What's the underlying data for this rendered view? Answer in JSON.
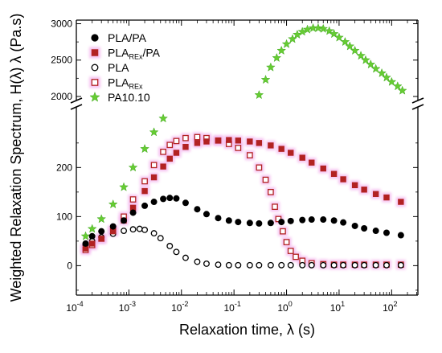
{
  "chart_data": {
    "type": "scatter",
    "xlabel": "Relaxation time, λ (s)",
    "ylabel": "Weighted Relaxation Spectrum, H(λ) λ (Pa.s)",
    "x_scale": "log",
    "xlim": [
      0.0001,
      316
    ],
    "x_ticks": [
      "10-4",
      "10-3",
      "10-2",
      "10-1",
      "100",
      "101",
      "102"
    ],
    "y_axis_break": {
      "lower_range": [
        -60,
        330
      ],
      "upper_range": [
        1900,
        3050
      ]
    },
    "y_ticks_lower": [
      "0",
      "100",
      "200"
    ],
    "y_ticks_upper": [
      "2000",
      "2500",
      "3000"
    ],
    "legend_position": "top-left",
    "series": [
      {
        "name": "PLA/PA",
        "marker": "filled-circle",
        "color": "#000000",
        "x": [
          0.00015,
          0.0002,
          0.0003,
          0.0005,
          0.0008,
          0.0012,
          0.002,
          0.003,
          0.0045,
          0.006,
          0.008,
          0.012,
          0.02,
          0.03,
          0.05,
          0.08,
          0.12,
          0.2,
          0.3,
          0.5,
          0.8,
          1.2,
          2,
          3,
          5,
          8,
          12,
          20,
          30,
          50,
          80,
          150
        ],
        "y": [
          45,
          60,
          70,
          80,
          92,
          108,
          122,
          130,
          136,
          138,
          137,
          128,
          115,
          105,
          97,
          92,
          89,
          87,
          86,
          87,
          89,
          91,
          93,
          94,
          94,
          92,
          88,
          81,
          76,
          71,
          67,
          62
        ]
      },
      {
        "name": "PLAREx/PA",
        "marker": "filled-square",
        "color": "#b22222",
        "x": [
          0.00015,
          0.0002,
          0.0003,
          0.0005,
          0.0008,
          0.0012,
          0.002,
          0.003,
          0.0045,
          0.006,
          0.008,
          0.012,
          0.02,
          0.03,
          0.05,
          0.08,
          0.12,
          0.2,
          0.3,
          0.5,
          0.8,
          1.2,
          2,
          3,
          5,
          8,
          12,
          20,
          30,
          50,
          80,
          150
        ],
        "y": [
          35,
          45,
          55,
          70,
          92,
          118,
          152,
          180,
          202,
          218,
          230,
          242,
          250,
          253,
          255,
          256,
          255,
          253,
          250,
          245,
          238,
          230,
          220,
          210,
          198,
          187,
          176,
          164,
          155,
          146,
          139,
          130
        ]
      },
      {
        "name": "PLA",
        "marker": "open-circle",
        "color": "#000000",
        "x": [
          0.00015,
          0.0002,
          0.0003,
          0.0005,
          0.0008,
          0.0012,
          0.0016,
          0.002,
          0.003,
          0.004,
          0.006,
          0.008,
          0.012,
          0.02,
          0.03,
          0.05,
          0.08,
          0.12,
          0.2,
          0.3,
          0.5,
          0.8,
          1.2,
          2,
          3,
          5,
          8,
          12,
          20,
          30,
          50,
          80,
          150
        ],
        "y": [
          42,
          50,
          58,
          65,
          71,
          74,
          75,
          73,
          66,
          56,
          40,
          28,
          16,
          8,
          4,
          2,
          1,
          1,
          1,
          1,
          1,
          1,
          1,
          1,
          1,
          1,
          1,
          1,
          1,
          1,
          1,
          1,
          1
        ]
      },
      {
        "name": "PLAREx",
        "marker": "open-square",
        "color": "#b22222",
        "x": [
          0.00015,
          0.0002,
          0.0003,
          0.0005,
          0.0008,
          0.0012,
          0.002,
          0.003,
          0.0045,
          0.006,
          0.008,
          0.012,
          0.02,
          0.03,
          0.05,
          0.08,
          0.12,
          0.2,
          0.3,
          0.4,
          0.5,
          0.6,
          0.7,
          0.85,
          1,
          1.2,
          1.5,
          2,
          3,
          5,
          8,
          12,
          20,
          30,
          50,
          80,
          150
        ],
        "y": [
          32,
          42,
          55,
          72,
          100,
          135,
          172,
          205,
          232,
          246,
          254,
          260,
          262,
          260,
          255,
          248,
          240,
          225,
          200,
          175,
          150,
          120,
          95,
          70,
          48,
          30,
          18,
          10,
          5,
          3,
          2,
          2,
          2,
          2,
          2,
          2,
          2
        ]
      },
      {
        "name": "PA10.10",
        "marker": "star",
        "color": "#66cc33",
        "x": [
          0.00015,
          0.0002,
          0.0003,
          0.0005,
          0.0008,
          0.0012,
          0.002,
          0.003,
          0.0045,
          0.3,
          0.4,
          0.5,
          0.65,
          0.8,
          1,
          1.3,
          1.6,
          2,
          2.5,
          3.2,
          4,
          5,
          6.5,
          8,
          10,
          13,
          16,
          20,
          26,
          32,
          40,
          50,
          65,
          80,
          100,
          130,
          160
        ],
        "y": [
          60,
          75,
          95,
          125,
          160,
          200,
          238,
          272,
          300,
          2020,
          2230,
          2400,
          2530,
          2630,
          2720,
          2790,
          2850,
          2890,
          2920,
          2940,
          2940,
          2930,
          2900,
          2860,
          2810,
          2750,
          2690,
          2630,
          2560,
          2500,
          2440,
          2380,
          2320,
          2260,
          2200,
          2140,
          2080
        ]
      }
    ]
  }
}
